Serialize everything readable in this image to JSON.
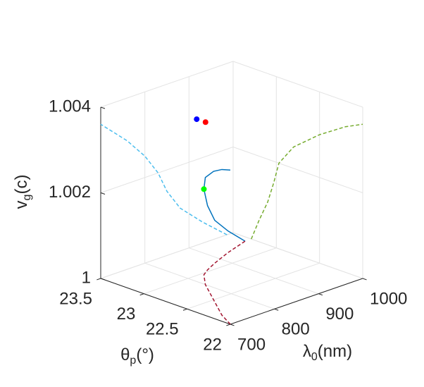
{
  "chart_data": {
    "type": "line3d",
    "xlabel": [
      "λ",
      "0",
      "(nm)"
    ],
    "ylabel": [
      "θ",
      "p",
      "(°)"
    ],
    "zlabel": [
      "v",
      "g",
      "(c)"
    ],
    "xlim": [
      700,
      1000
    ],
    "xticks": [
      700,
      800,
      900,
      1000
    ],
    "ylim": [
      22,
      23.5
    ],
    "yticks": [
      22,
      22.5,
      23,
      23.5
    ],
    "zlim": [
      1,
      1.004
    ],
    "zticks": [
      1,
      1.002,
      1.004
    ],
    "grid": true,
    "series": [
      {
        "color": "#0072BD",
        "linestyle": "solid",
        "x": [
          986,
          930,
          880,
          850,
          830,
          800,
          760,
          720,
          700
        ],
        "y": [
          23.29,
          23.2,
          23.1,
          23.03,
          22.97,
          22.8,
          22.5,
          22.2,
          22.0
        ],
        "z": [
          1.0,
          1.0005,
          1.001,
          1.0015,
          1.002,
          1.0025,
          1.003,
          1.0034,
          1.0036
        ]
      },
      {
        "color": "#4DBEEE",
        "linestyle": "dashed",
        "x": [
          986,
          930,
          880,
          850,
          830,
          800,
          760,
          720,
          700
        ],
        "y": [
          23.5,
          23.5,
          23.5,
          23.5,
          23.5,
          23.5,
          23.5,
          23.5,
          23.5
        ],
        "z": [
          1.0,
          1.0005,
          1.001,
          1.0015,
          1.002,
          1.0025,
          1.003,
          1.0034,
          1.0036
        ]
      },
      {
        "color": "#77AC30",
        "linestyle": "dashed",
        "x": [
          1000,
          1000,
          1000,
          1000,
          1000,
          1000,
          1000,
          1000,
          1000
        ],
        "y": [
          23.29,
          23.2,
          23.1,
          23.03,
          22.97,
          22.8,
          22.5,
          22.2,
          22.0
        ],
        "z": [
          1.0,
          1.0005,
          1.001,
          1.0015,
          1.002,
          1.0025,
          1.003,
          1.0034,
          1.0036
        ]
      },
      {
        "color": "#A2142F",
        "linestyle": "dashed",
        "x": [
          986,
          930,
          880,
          850,
          830,
          800,
          760,
          720,
          700
        ],
        "y": [
          23.29,
          23.2,
          23.1,
          23.03,
          22.97,
          22.8,
          22.5,
          22.2,
          22.0
        ],
        "z": [
          1,
          1,
          1,
          1,
          1,
          1,
          1,
          1,
          1
        ]
      }
    ],
    "points": [
      {
        "color": "#0000FF",
        "x": 800,
        "y": 22.9,
        "z": 1.00379
      },
      {
        "color": "#FF0000",
        "x": 820,
        "y": 22.9,
        "z": 1.00365
      },
      {
        "color": "#00FF00",
        "x": 830,
        "y": 22.97,
        "z": 1.002
      }
    ]
  }
}
